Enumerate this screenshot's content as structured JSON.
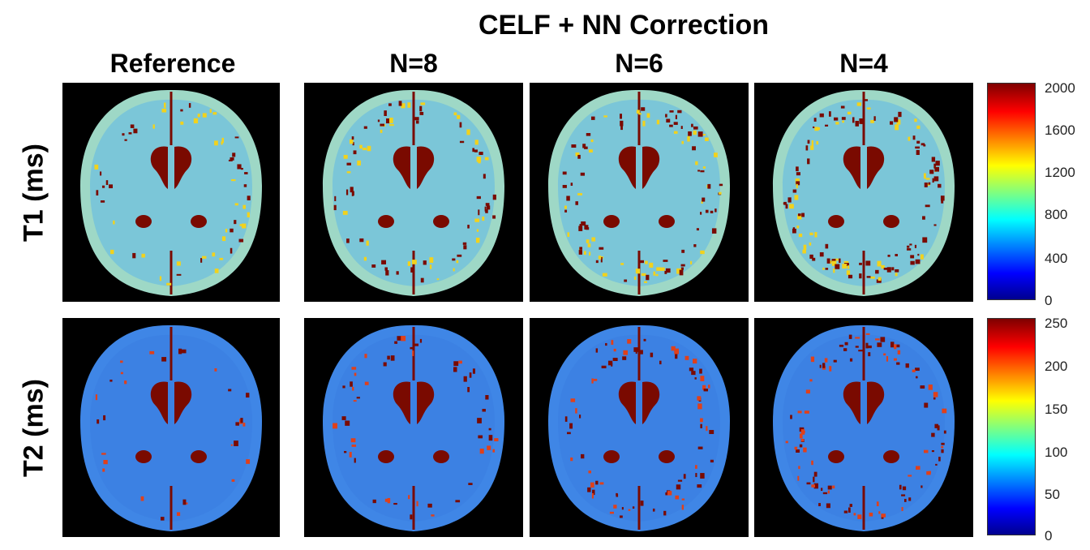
{
  "figure": {
    "group_title": "CELF + NN Correction",
    "columns": [
      "Reference",
      "N=8",
      "N=6",
      "N=4"
    ],
    "rows": [
      {
        "label": "T1 (ms)",
        "map": "t1",
        "colorbar_ticks": [
          "2000",
          "1600",
          "1200",
          "800",
          "400",
          "0"
        ]
      },
      {
        "label": "T2 (ms)",
        "map": "t2",
        "colorbar_ticks": [
          "250",
          "200",
          "150",
          "100",
          "50",
          "0"
        ]
      }
    ],
    "colormap": "jet",
    "colors": {
      "background": "#000000",
      "ventricle": "#7a0a00",
      "t1_tissue": "#9ed8c6",
      "t2_tissue": "#3f86e6"
    }
  }
}
